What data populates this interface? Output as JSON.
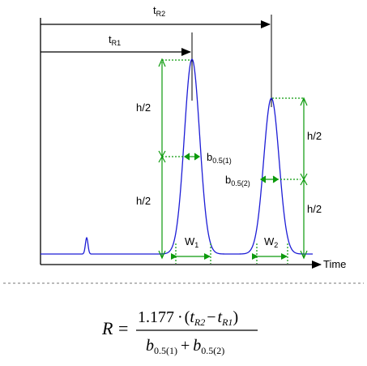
{
  "labels": {
    "tr2": {
      "main": "t",
      "sub": "R2"
    },
    "tr1": {
      "main": "t",
      "sub": "R1"
    },
    "half": "h/2",
    "b1": {
      "main": "b",
      "sub": "0.5(1)"
    },
    "b2": {
      "main": "b",
      "sub": "0.5(2)"
    },
    "w1": {
      "main": "W",
      "sub": "1"
    },
    "w2": {
      "main": "W",
      "sub": "2"
    },
    "time_axis": "Time"
  },
  "equation": {
    "lhs": "R",
    "equals": "=",
    "coef": "1.177",
    "dot": "·",
    "t": "t",
    "tr2_sub": "R2",
    "tr1_sub": "R1",
    "minus": "−",
    "b": "b",
    "b1_sub": "0.5(1)",
    "plus": "+",
    "b2_sub": "0.5(2)"
  },
  "colors": {
    "trace": "#1d1dd6",
    "measure": "#0c9a0c",
    "axis": "#000000",
    "divider": "#777777"
  }
}
